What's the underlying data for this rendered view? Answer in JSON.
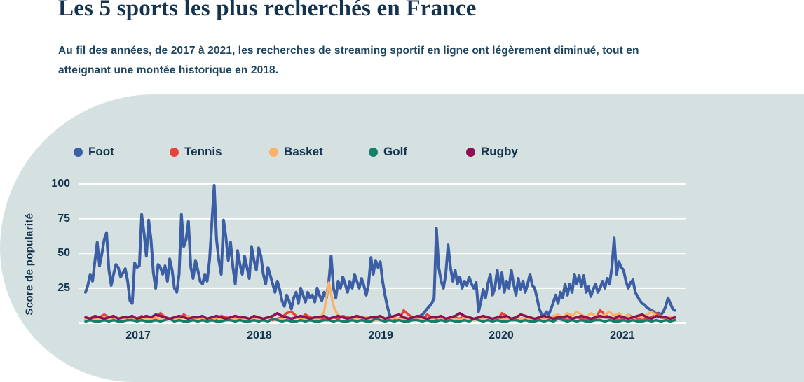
{
  "header": {
    "title": "Les 5 sports les plus recherchés en France",
    "subtitle_line1": "Au fil des années, de 2017 à 2021, les recherches de streaming sportif en ligne ont légèrement diminué, tout en",
    "subtitle_line2": "atteignant une montée historique en 2018."
  },
  "chart_data": {
    "type": "line",
    "title": "Les 5 sports les plus recherchés en France",
    "ylabel": "Score de popularité",
    "xlabel": "",
    "ylim": [
      0,
      100
    ],
    "y_ticks": [
      25,
      50,
      75,
      100
    ],
    "grid": "horizontal-white-lines",
    "legend_position": "top",
    "background_color": "#D5E1E0",
    "grid_color": "#FFFFFF",
    "text_color": "#14334E",
    "x_unit": "weeks (mid-2016 to mid-2021, Google-Trends style weekly popularity index)",
    "x_range_weeks": [
      0,
      252
    ],
    "x_ticks": [
      {
        "label": "2017",
        "week": 22.5
      },
      {
        "label": "2018",
        "week": 74.3
      },
      {
        "label": "2019",
        "week": 126.2
      },
      {
        "label": "2020",
        "week": 177.7
      },
      {
        "label": "2021",
        "week": 229.5
      }
    ],
    "series": [
      {
        "name": "Foot",
        "color": "#3C5EA4",
        "x_step": 1,
        "values": [
          22,
          27,
          35,
          30,
          44,
          58,
          41,
          50,
          60,
          65,
          38,
          27,
          35,
          42,
          40,
          33,
          36,
          39,
          30,
          16,
          14,
          43,
          40,
          41,
          78,
          65,
          48,
          74,
          60,
          36,
          25,
          42,
          40,
          35,
          41,
          30,
          46,
          38,
          25,
          22,
          35,
          78,
          55,
          60,
          73,
          40,
          32,
          45,
          38,
          30,
          28,
          35,
          30,
          45,
          72,
          99,
          60,
          45,
          35,
          74,
          62,
          45,
          58,
          40,
          28,
          52,
          42,
          35,
          48,
          40,
          32,
          55,
          45,
          38,
          54,
          48,
          35,
          28,
          40,
          34,
          28,
          22,
          30,
          24,
          16,
          12,
          20,
          16,
          10,
          18,
          22,
          14,
          25,
          20,
          15,
          22,
          18,
          20,
          15,
          25,
          20,
          16,
          22,
          18,
          30,
          48,
          25,
          18,
          30,
          25,
          33,
          28,
          22,
          30,
          25,
          35,
          30,
          25,
          32,
          27,
          20,
          28,
          47,
          35,
          45,
          40,
          44,
          30,
          20,
          12,
          6,
          3,
          2,
          3,
          2,
          3,
          2,
          3,
          3,
          2,
          3,
          4,
          3,
          5,
          6,
          8,
          10,
          12,
          14,
          18,
          68,
          40,
          30,
          25,
          35,
          56,
          40,
          30,
          38,
          28,
          33,
          25,
          30,
          27,
          33,
          28,
          25,
          29,
          8,
          15,
          24,
          18,
          28,
          35,
          20,
          25,
          38,
          25,
          36,
          22,
          30,
          25,
          38,
          28,
          20,
          32,
          24,
          30,
          22,
          28,
          35,
          27,
          25,
          18,
          10,
          6,
          5,
          8,
          6,
          10,
          15,
          20,
          14,
          22,
          18,
          28,
          20,
          28,
          22,
          35,
          28,
          34,
          26,
          34,
          22,
          26,
          19,
          24,
          28,
          22,
          25,
          30,
          25,
          32,
          28,
          40,
          61,
          35,
          44,
          40,
          38,
          30,
          25,
          29,
          31,
          22,
          19,
          16,
          14,
          13,
          11,
          10,
          9,
          8,
          6,
          7,
          6,
          8,
          12,
          18,
          14,
          10,
          9
        ]
      },
      {
        "name": "Tennis",
        "color": "#E8423E",
        "x_step": 2,
        "values": [
          3,
          2,
          3,
          4,
          6,
          4,
          3,
          2,
          3,
          3,
          4,
          3,
          5,
          3,
          2,
          3,
          7,
          4,
          3,
          2,
          3,
          6,
          4,
          3,
          2,
          3,
          3,
          4,
          3,
          5,
          4,
          3,
          2,
          3,
          4,
          3,
          2,
          3,
          3,
          4,
          2,
          3,
          4,
          7,
          8,
          5,
          3,
          6,
          4,
          3,
          2,
          3,
          3,
          4,
          3,
          5,
          4,
          3,
          2,
          3,
          4,
          3,
          2,
          3,
          3,
          4,
          3,
          2,
          9,
          6,
          4,
          3,
          2,
          6,
          4,
          3,
          3,
          2,
          3,
          4,
          3,
          5,
          4,
          3,
          2,
          3,
          4,
          3,
          2,
          7,
          5,
          3,
          2,
          3,
          3,
          4,
          2,
          3,
          4,
          3,
          5,
          4,
          3,
          2,
          3,
          4,
          3,
          2,
          3,
          3,
          9,
          6,
          4,
          3,
          2,
          3,
          6,
          4,
          3,
          2,
          3,
          4,
          7,
          5,
          3,
          4,
          3
        ]
      },
      {
        "name": "Basket",
        "color": "#FBB168",
        "x_step": 2,
        "values": [
          3,
          2,
          2,
          3,
          4,
          3,
          2,
          3,
          3,
          2,
          4,
          3,
          2,
          3,
          3,
          4,
          2,
          3,
          3,
          2,
          3,
          4,
          5,
          3,
          2,
          3,
          3,
          2,
          4,
          3,
          2,
          3,
          3,
          4,
          2,
          3,
          3,
          2,
          3,
          4,
          3,
          2,
          3,
          3,
          2,
          4,
          3,
          3,
          2,
          3,
          3,
          8,
          29,
          12,
          5,
          4,
          3,
          2,
          3,
          3,
          4,
          3,
          2,
          3,
          3,
          2,
          4,
          3,
          2,
          3,
          4,
          3,
          2,
          3,
          3,
          4,
          3,
          2,
          3,
          3,
          2,
          4,
          3,
          2,
          3,
          3,
          4,
          3,
          2,
          3,
          3,
          2,
          4,
          3,
          3,
          2,
          3,
          4,
          3,
          3,
          5,
          6,
          4,
          7,
          5,
          8,
          6,
          4,
          7,
          5,
          3,
          6,
          8,
          5,
          7,
          4,
          6,
          3,
          5,
          4,
          6,
          8,
          5,
          4,
          3,
          4,
          3
        ]
      },
      {
        "name": "Golf",
        "color": "#15806A",
        "x_step": 2,
        "values": [
          1,
          2,
          1,
          1,
          2,
          1,
          2,
          1,
          1,
          2,
          2,
          1,
          2,
          1,
          1,
          2,
          1,
          2,
          3,
          1,
          2,
          1,
          1,
          2,
          1,
          2,
          1,
          2,
          1,
          1,
          2,
          2,
          1,
          2,
          1,
          1,
          2,
          1,
          2,
          1,
          3,
          2,
          1,
          2,
          1,
          1,
          2,
          1,
          2,
          1,
          1,
          2,
          2,
          1,
          2,
          1,
          1,
          2,
          1,
          2,
          1,
          1,
          3,
          2,
          1,
          2,
          1,
          2,
          1,
          1,
          2,
          2,
          1,
          2,
          1,
          1,
          2,
          1,
          2,
          1,
          1,
          2,
          1,
          3,
          2,
          1,
          2,
          1,
          2,
          1,
          1,
          2,
          2,
          1,
          2,
          1,
          1,
          2,
          1,
          2,
          1,
          3,
          2,
          1,
          2,
          1,
          2,
          1,
          1,
          2,
          2,
          1,
          2,
          1,
          1,
          2,
          1,
          2,
          1,
          1,
          2,
          1,
          2,
          1,
          2,
          1,
          2
        ]
      },
      {
        "name": "Rugby",
        "color": "#8E1050",
        "x_step": 2,
        "values": [
          4,
          3,
          5,
          4,
          3,
          4,
          5,
          3,
          4,
          4,
          5,
          3,
          4,
          5,
          4,
          6,
          5,
          4,
          3,
          4,
          5,
          4,
          3,
          4,
          4,
          5,
          3,
          4,
          5,
          4,
          3,
          4,
          5,
          4,
          4,
          3,
          5,
          4,
          3,
          4,
          5,
          7,
          5,
          4,
          3,
          4,
          5,
          4,
          3,
          4,
          4,
          5,
          3,
          4,
          5,
          4,
          3,
          4,
          5,
          4,
          3,
          4,
          4,
          5,
          3,
          4,
          5,
          6,
          4,
          3,
          4,
          5,
          4,
          3,
          4,
          4,
          5,
          3,
          4,
          5,
          7,
          5,
          4,
          3,
          4,
          5,
          4,
          3,
          4,
          4,
          5,
          3,
          4,
          6,
          5,
          4,
          3,
          4,
          5,
          4,
          3,
          4,
          4,
          5,
          3,
          4,
          5,
          4,
          3,
          4,
          5,
          4,
          4,
          3,
          5,
          4,
          3,
          4,
          5,
          6,
          4,
          3,
          5,
          4,
          4,
          3,
          4
        ]
      }
    ]
  }
}
